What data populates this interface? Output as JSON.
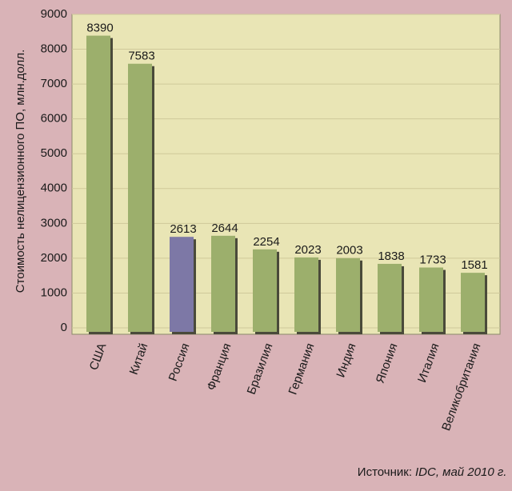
{
  "chart_data": {
    "type": "bar",
    "y_label": "Стоимость нелицензионного ПО, млн.долл.",
    "source_label": "Источник:",
    "source_text": "IDC, май 2010 г.",
    "categories": [
      "США",
      "Китай",
      "Россия",
      "Франция",
      "Бразилия",
      "Германия",
      "Индия",
      "Япония",
      "Италия",
      "Великобритания"
    ],
    "values": [
      8390,
      7583,
      2613,
      2644,
      2254,
      2023,
      2003,
      1838,
      1733,
      1581
    ],
    "colors": [
      "#9caf6c",
      "#9caf6c",
      "#7d78a6",
      "#9caf6c",
      "#9caf6c",
      "#9caf6c",
      "#9caf6c",
      "#9caf6c",
      "#9caf6c",
      "#9caf6c"
    ],
    "ylim": [
      0,
      9000
    ],
    "yticks": [
      0,
      1000,
      2000,
      3000,
      4000,
      5000,
      6000,
      7000,
      8000,
      9000
    ],
    "grid": true
  }
}
